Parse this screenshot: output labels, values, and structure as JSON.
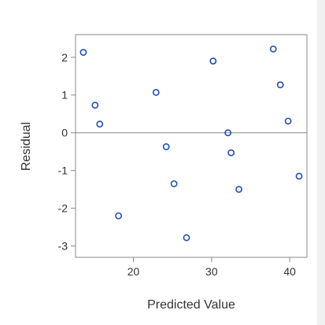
{
  "chart_data": {
    "type": "scatter",
    "title": "",
    "xlabel": "Predicted Value",
    "ylabel": "Residual",
    "xlim": [
      12.6,
      42.2
    ],
    "ylim": [
      -3.3,
      2.6
    ],
    "xticks": [
      20,
      30,
      40
    ],
    "yticks": [
      -3,
      -2,
      -1,
      0,
      1,
      2
    ],
    "xtick_labels": [
      "20",
      "30",
      "40"
    ],
    "ytick_labels": [
      "-3",
      "-2",
      "-1",
      "0",
      "1",
      "2"
    ],
    "reference_line_y": 0,
    "grid": false,
    "legend": "none",
    "marker": "open-circle",
    "marker_color": "#1f4fb5",
    "points": [
      {
        "x": 13.6,
        "y": 2.13
      },
      {
        "x": 15.1,
        "y": 0.73
      },
      {
        "x": 15.7,
        "y": 0.23
      },
      {
        "x": 18.1,
        "y": -2.2
      },
      {
        "x": 22.9,
        "y": 1.07
      },
      {
        "x": 24.2,
        "y": -0.37
      },
      {
        "x": 25.2,
        "y": -1.35
      },
      {
        "x": 26.8,
        "y": -2.78
      },
      {
        "x": 30.2,
        "y": 1.9
      },
      {
        "x": 32.1,
        "y": 0.0
      },
      {
        "x": 32.5,
        "y": -0.53
      },
      {
        "x": 33.5,
        "y": -1.5
      },
      {
        "x": 37.9,
        "y": 2.22
      },
      {
        "x": 38.8,
        "y": 1.27
      },
      {
        "x": 39.8,
        "y": 0.31
      },
      {
        "x": 41.2,
        "y": -1.15
      }
    ]
  }
}
